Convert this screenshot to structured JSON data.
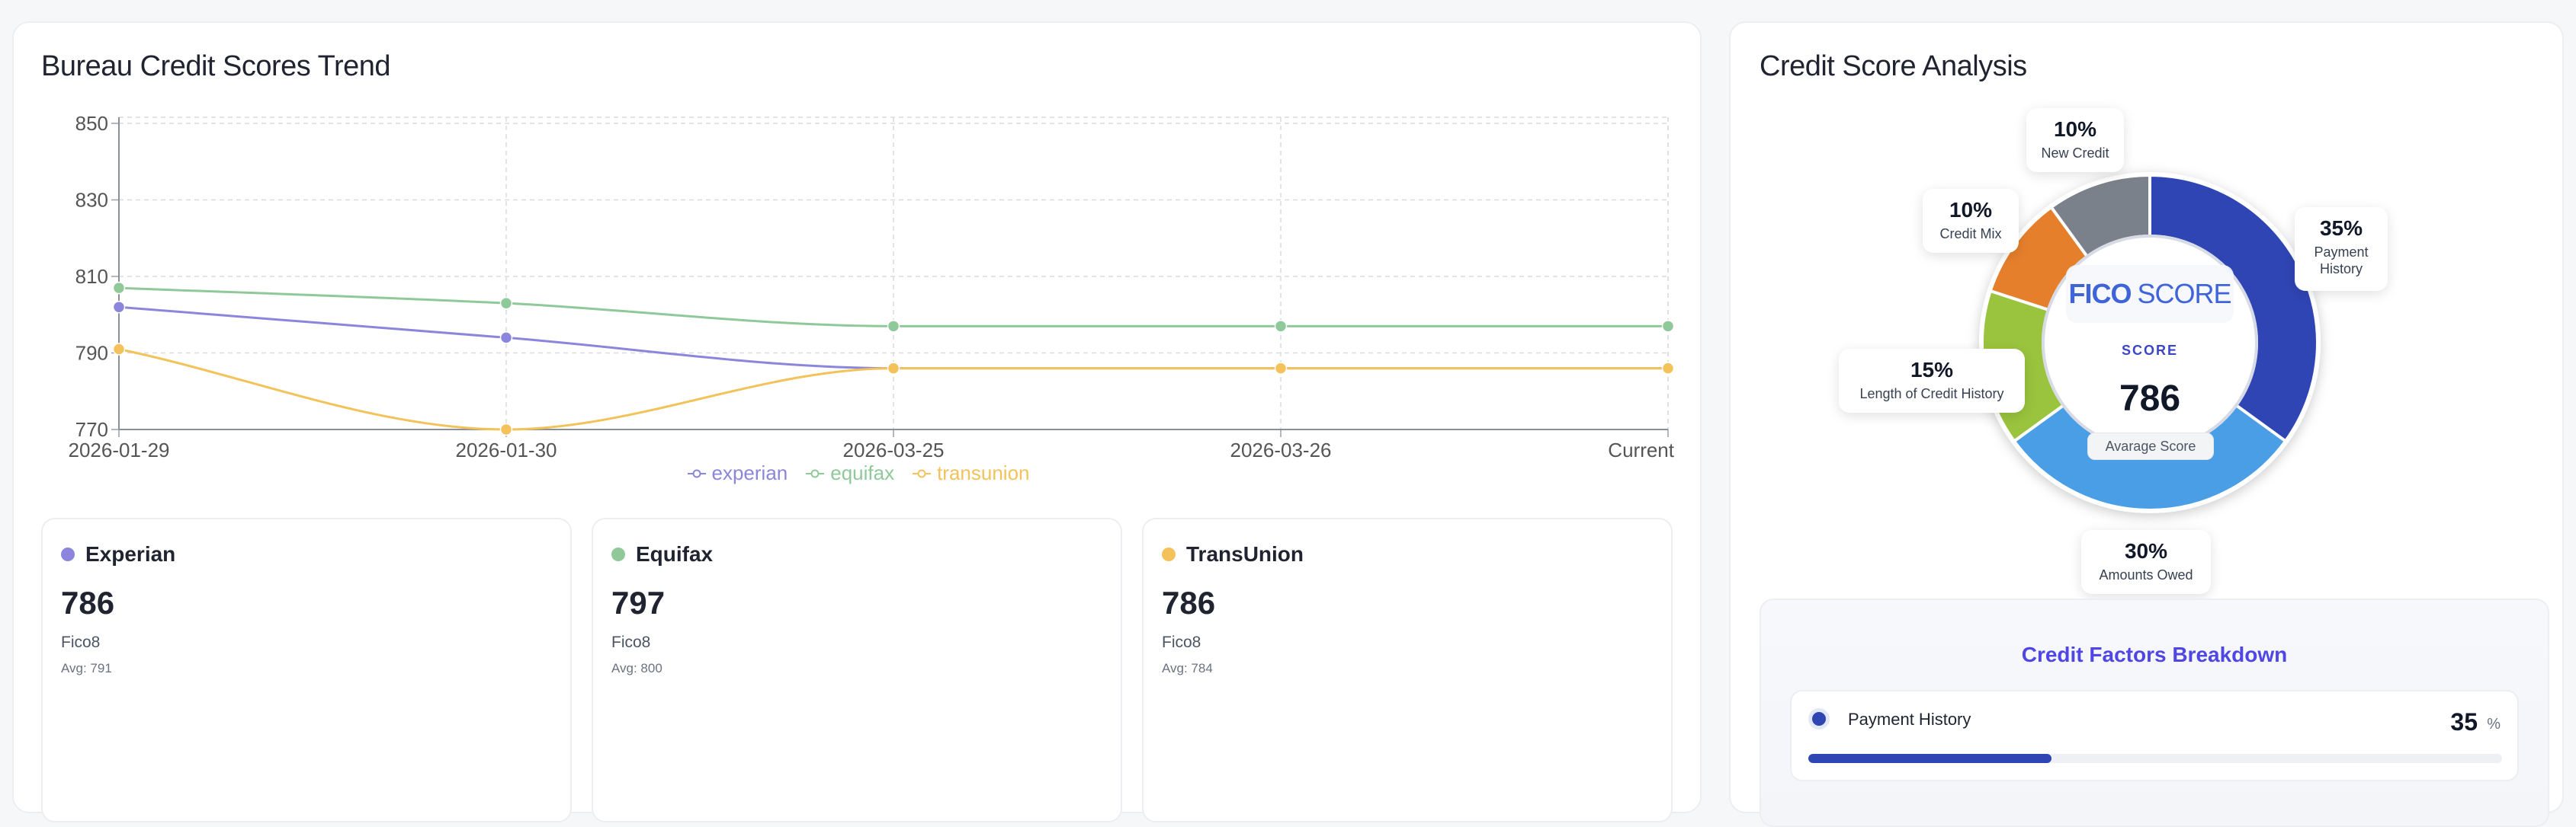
{
  "trend": {
    "title": "Bureau Credit Scores Trend"
  },
  "chart_data": {
    "type": "line",
    "categories": [
      "2026-01-29",
      "2026-01-30",
      "2026-03-25",
      "2026-03-26",
      "Current"
    ],
    "y_ticks": [
      "770",
      "790",
      "810",
      "830",
      "850"
    ],
    "ylim": [
      770,
      850
    ],
    "grid": true,
    "legend_position": "bottom",
    "series": [
      {
        "name": "experian",
        "color": "#8b86db",
        "values": [
          802,
          794,
          786,
          786,
          786
        ]
      },
      {
        "name": "equifax",
        "color": "#8fc99a",
        "values": [
          807,
          803,
          797,
          797,
          797
        ]
      },
      {
        "name": "transunion",
        "color": "#f3c25a",
        "values": [
          791,
          770,
          786,
          786,
          786
        ]
      }
    ]
  },
  "bureaus": [
    {
      "name": "Experian",
      "score": "786",
      "model": "Fico8",
      "avg": "Avg: 791",
      "color": "#8b86db"
    },
    {
      "name": "Equifax",
      "score": "797",
      "model": "Fico8",
      "avg": "Avg: 800",
      "color": "#8fc99a"
    },
    {
      "name": "TransUnion",
      "score": "786",
      "model": "Fico8",
      "avg": "Avg: 784",
      "color": "#f3c25a"
    }
  ],
  "analysis": {
    "title": "Credit Score Analysis",
    "logo_fico": "FICO",
    "logo_score": "SCORE",
    "score_label": "SCORE",
    "score_value": "786",
    "score_sub": "Avarage Score",
    "segments": [
      {
        "label": "Payment History",
        "label_lines": [
          "Payment",
          "History"
        ],
        "pct": "35%",
        "value": 35,
        "color": "#2f45b3"
      },
      {
        "label": "Amounts Owed",
        "label_lines": [
          "Amounts Owed"
        ],
        "pct": "30%",
        "value": 30,
        "color": "#4a9ee6"
      },
      {
        "label": "Length of Credit History",
        "label_lines": [
          "Length of Credit History"
        ],
        "pct": "15%",
        "value": 15,
        "color": "#9ac43d"
      },
      {
        "label": "Credit Mix",
        "label_lines": [
          "Credit Mix"
        ],
        "pct": "10%",
        "value": 10,
        "color": "#e57f2c"
      },
      {
        "label": "New Credit",
        "label_lines": [
          "New Credit"
        ],
        "pct": "10%",
        "value": 10,
        "color": "#7b818a"
      }
    ]
  },
  "breakdown": {
    "title": "Credit Factors Breakdown",
    "rows": [
      {
        "name": "Payment History",
        "value": "35",
        "unit": "%",
        "fraction": 0.35,
        "color": "#2f45b3"
      }
    ]
  }
}
